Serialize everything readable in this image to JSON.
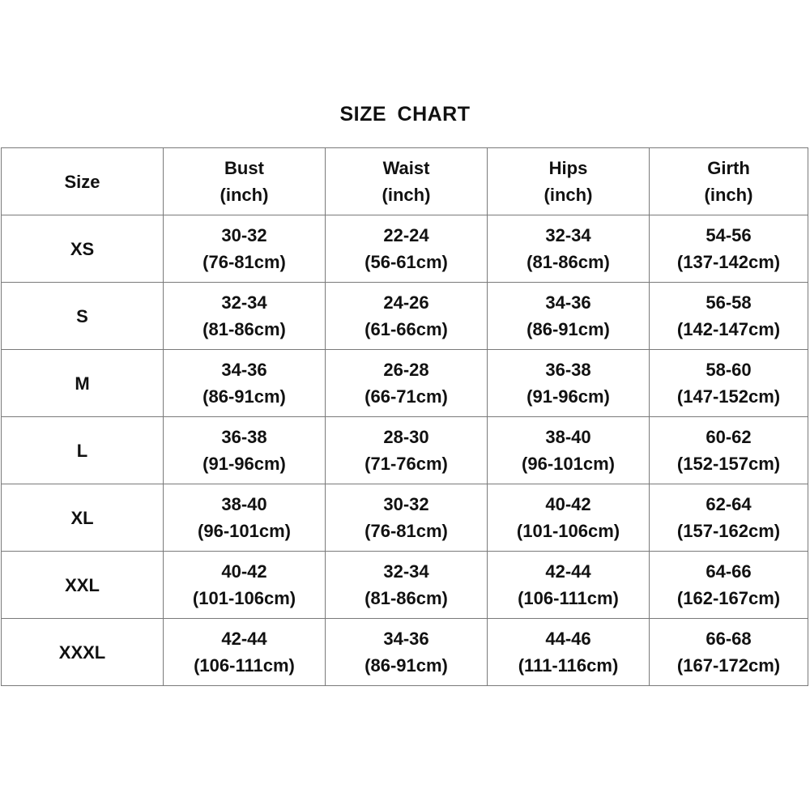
{
  "title": "SIZE  CHART",
  "headers": [
    {
      "lines": [
        "Size"
      ]
    },
    {
      "lines": [
        "Bust",
        "(inch)"
      ]
    },
    {
      "lines": [
        "Waist",
        "(inch)"
      ]
    },
    {
      "lines": [
        "Hips",
        "(inch)"
      ]
    },
    {
      "lines": [
        "Girth",
        "(inch)"
      ]
    }
  ],
  "rows": [
    {
      "size": "XS",
      "cells": [
        [
          "30-32",
          "(76-81cm)"
        ],
        [
          "22-24",
          "(56-61cm)"
        ],
        [
          "32-34",
          "(81-86cm)"
        ],
        [
          "54-56",
          "(137-142cm)"
        ]
      ]
    },
    {
      "size": "S",
      "cells": [
        [
          "32-34",
          "(81-86cm)"
        ],
        [
          "24-26",
          "(61-66cm)"
        ],
        [
          "34-36",
          "(86-91cm)"
        ],
        [
          "56-58",
          "(142-147cm)"
        ]
      ]
    },
    {
      "size": "M",
      "cells": [
        [
          "34-36",
          "(86-91cm)"
        ],
        [
          "26-28",
          "(66-71cm)"
        ],
        [
          "36-38",
          "(91-96cm)"
        ],
        [
          "58-60",
          "(147-152cm)"
        ]
      ]
    },
    {
      "size": "L",
      "cells": [
        [
          "36-38",
          "(91-96cm)"
        ],
        [
          "28-30",
          "(71-76cm)"
        ],
        [
          "38-40",
          "(96-101cm)"
        ],
        [
          "60-62",
          "(152-157cm)"
        ]
      ]
    },
    {
      "size": "XL",
      "cells": [
        [
          "38-40",
          "(96-101cm)"
        ],
        [
          "30-32",
          "(76-81cm)"
        ],
        [
          "40-42",
          "(101-106cm)"
        ],
        [
          "62-64",
          "(157-162cm)"
        ]
      ]
    },
    {
      "size": "XXL",
      "cells": [
        [
          "40-42",
          "(101-106cm)"
        ],
        [
          "32-34",
          "(81-86cm)"
        ],
        [
          "42-44",
          "(106-111cm)"
        ],
        [
          "64-66",
          "(162-167cm)"
        ]
      ]
    },
    {
      "size": "XXXL",
      "cells": [
        [
          "42-44",
          "(106-111cm)"
        ],
        [
          "34-36",
          "(86-91cm)"
        ],
        [
          "44-46",
          "(111-116cm)"
        ],
        [
          "66-68",
          "(167-172cm)"
        ]
      ]
    }
  ]
}
